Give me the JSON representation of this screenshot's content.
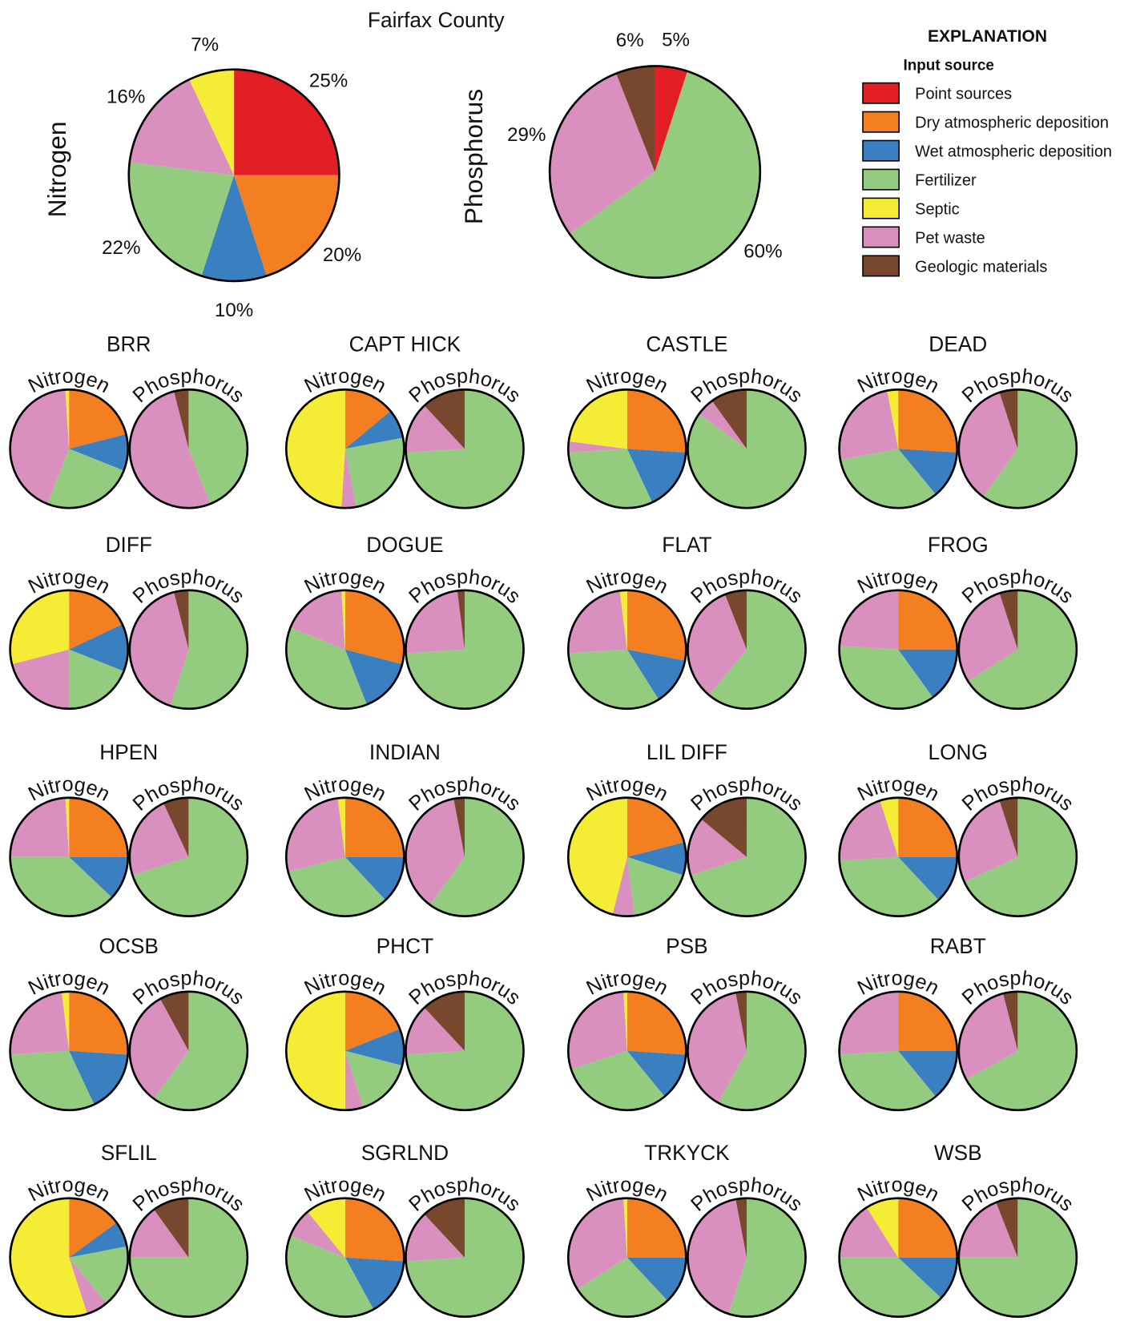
{
  "chart_data": {
    "type": "pie",
    "title": "Fairfax County",
    "categories": [
      "Point sources",
      "Dry atmospheric deposition",
      "Wet atmospheric deposition",
      "Fertilizer",
      "Septic",
      "Pet waste",
      "Geologic materials"
    ],
    "colors": [
      "#e31f26",
      "#f47f20",
      "#3a7fc0",
      "#93cc7e",
      "#f4ec35",
      "#da90bf",
      "#77472e"
    ],
    "unit": "%",
    "labels": {
      "nitrogen": "Nitrogen",
      "phosphorus": "Phosphorus"
    },
    "legend": {
      "title": "EXPLANATION",
      "subtitle": "Input source",
      "placement": "top-right"
    },
    "county": {
      "nitrogen": [
        25,
        20,
        10,
        22,
        7,
        16,
        0
      ],
      "phosphorus": [
        5,
        0,
        0,
        60,
        0,
        29,
        6
      ]
    },
    "stations": [
      {
        "name": "BRR",
        "nitrogen": [
          0,
          21,
          10,
          25,
          1,
          43,
          0
        ],
        "phosphorus": [
          0,
          0,
          0,
          44,
          0,
          52,
          4
        ]
      },
      {
        "name": "CAPT HICK",
        "nitrogen": [
          0,
          14,
          8,
          25,
          49,
          4,
          0
        ],
        "phosphorus": [
          0,
          0,
          0,
          74,
          0,
          14,
          12
        ]
      },
      {
        "name": "CASTLE",
        "nitrogen": [
          0,
          26,
          17,
          31,
          23,
          3,
          0
        ],
        "phosphorus": [
          0,
          0,
          0,
          85,
          0,
          5,
          10
        ]
      },
      {
        "name": "DEAD",
        "nitrogen": [
          0,
          26,
          13,
          33,
          3,
          25,
          0
        ],
        "phosphorus": [
          0,
          0,
          0,
          60,
          0,
          35,
          5
        ]
      },
      {
        "name": "DIFF",
        "nitrogen": [
          0,
          18,
          13,
          19,
          29,
          21,
          0
        ],
        "phosphorus": [
          0,
          0,
          0,
          55,
          0,
          41,
          4
        ]
      },
      {
        "name": "DOGUE",
        "nitrogen": [
          0,
          29,
          15,
          37,
          1,
          18,
          0
        ],
        "phosphorus": [
          0,
          0,
          0,
          74,
          0,
          24,
          2
        ]
      },
      {
        "name": "FLAT",
        "nitrogen": [
          0,
          28,
          13,
          33,
          2,
          24,
          0
        ],
        "phosphorus": [
          0,
          0,
          0,
          61,
          0,
          33,
          6
        ]
      },
      {
        "name": "FROG",
        "nitrogen": [
          0,
          25,
          15,
          36,
          0,
          24,
          0
        ],
        "phosphorus": [
          0,
          0,
          0,
          66,
          0,
          29,
          5
        ]
      },
      {
        "name": "HPEN",
        "nitrogen": [
          0,
          25,
          12,
          38,
          1,
          24,
          0
        ],
        "phosphorus": [
          0,
          0,
          0,
          70,
          0,
          23,
          7
        ]
      },
      {
        "name": "INDIAN",
        "nitrogen": [
          0,
          25,
          13,
          33,
          2,
          27,
          0
        ],
        "phosphorus": [
          0,
          0,
          0,
          60,
          0,
          37,
          3
        ]
      },
      {
        "name": "LIL DIFF",
        "nitrogen": [
          0,
          21,
          9,
          18,
          46,
          6,
          0
        ],
        "phosphorus": [
          0,
          0,
          0,
          70,
          0,
          16,
          14
        ]
      },
      {
        "name": "LONG",
        "nitrogen": [
          0,
          25,
          13,
          36,
          5,
          21,
          0
        ],
        "phosphorus": [
          0,
          0,
          0,
          68,
          0,
          27,
          5
        ]
      },
      {
        "name": "OCSB",
        "nitrogen": [
          0,
          26,
          17,
          31,
          2,
          24,
          0
        ],
        "phosphorus": [
          0,
          0,
          0,
          60,
          0,
          32,
          8
        ]
      },
      {
        "name": "PHCT",
        "nitrogen": [
          0,
          19,
          10,
          16,
          50,
          5,
          0
        ],
        "phosphorus": [
          0,
          0,
          0,
          74,
          0,
          14,
          12
        ]
      },
      {
        "name": "PSB",
        "nitrogen": [
          0,
          26,
          13,
          31,
          1,
          29,
          0
        ],
        "phosphorus": [
          0,
          0,
          0,
          58,
          0,
          39,
          3
        ]
      },
      {
        "name": "RABT",
        "nitrogen": [
          0,
          25,
          14,
          35,
          0,
          26,
          0
        ],
        "phosphorus": [
          0,
          0,
          0,
          67,
          0,
          29,
          4
        ]
      },
      {
        "name": "SFLIL",
        "nitrogen": [
          0,
          15,
          7,
          17,
          55,
          6,
          0
        ],
        "phosphorus": [
          0,
          0,
          0,
          75,
          0,
          15,
          10
        ]
      },
      {
        "name": "SGRLND",
        "nitrogen": [
          0,
          26,
          16,
          39,
          11,
          8,
          0
        ],
        "phosphorus": [
          0,
          0,
          0,
          74,
          0,
          14,
          12
        ]
      },
      {
        "name": "TRKYCK",
        "nitrogen": [
          0,
          25,
          13,
          28,
          1,
          33,
          0
        ],
        "phosphorus": [
          0,
          0,
          0,
          55,
          0,
          42,
          3
        ]
      },
      {
        "name": "WSB",
        "nitrogen": [
          0,
          25,
          12,
          38,
          9,
          16,
          0
        ],
        "phosphorus": [
          0,
          0,
          0,
          75,
          0,
          19,
          6
        ]
      }
    ]
  }
}
